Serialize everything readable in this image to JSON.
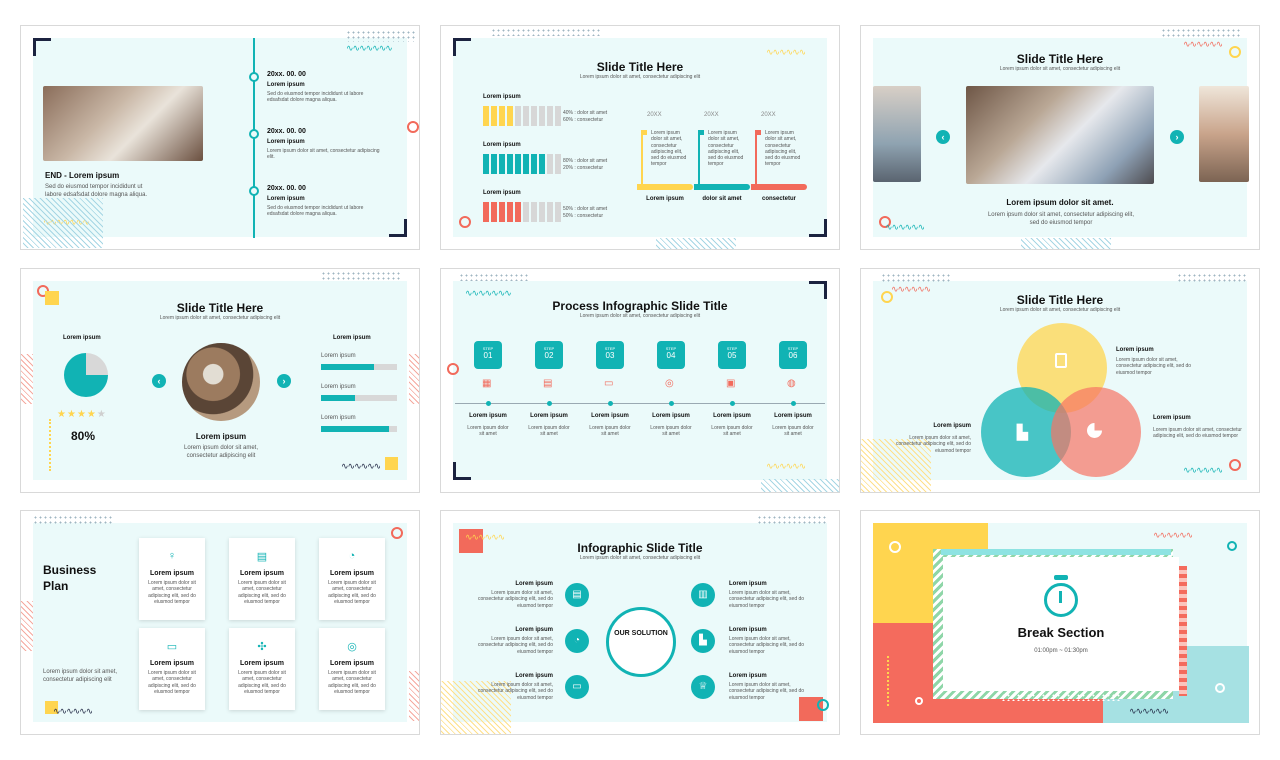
{
  "slide1": {
    "heading": "END - Lorem ipsum",
    "body": "Sed do eiusmod tempor incididunt ut labore edsafsdat dolore magna aliqua.",
    "timeline": [
      {
        "date": "20xx. 00. 00",
        "label": "Lorem ipsum",
        "text": "Sed do eiusmod tempor incididunt ut labore edsafsdat dolore magna aliqua."
      },
      {
        "date": "20xx. 00. 00",
        "label": "Lorem ipsum",
        "text": "Lorem ipsum dolor sit amet, consectetur adipiscing elit."
      },
      {
        "date": "20xx. 00. 00",
        "label": "Lorem ipsum",
        "text": "Sed do eiusmod tempor incididunt ut labore edsafsdat dolore magna aliqua."
      }
    ]
  },
  "slide2": {
    "title": "Slide Title Here",
    "subtitle": "Lorem ipsum dolor sit amet, consectetur adipiscing elit",
    "rows": [
      {
        "label": "Lorem ipsum",
        "line1": "40% : dolor sit amet",
        "line2": "60% : consectetur",
        "filled": 4,
        "color": "#ffd54f"
      },
      {
        "label": "Lorem ipsum",
        "line1": "80% : dolor sit amet",
        "line2": "20% : consectetur",
        "filled": 8,
        "color": "#11b3b4"
      },
      {
        "label": "Lorem ipsum",
        "line1": "50% : dolor sit amet",
        "line2": "50% : consectetur",
        "filled": 5,
        "color": "#f26a5b"
      }
    ],
    "years": [
      "20XX",
      "20XX",
      "20XX"
    ],
    "flag_text": "Lorem ipsum dolor sit amet, consectetur adipiscing elit, sed do eiusmod tempor",
    "flag_labels": [
      "Lorem ipsum",
      "dolor sit amet",
      "consectetur"
    ]
  },
  "slide3": {
    "title": "Slide Title Here",
    "subtitle": "Lorem ipsum dolor sit amet, consectetur adipiscing elit",
    "heading": "Lorem ipsum dolor sit amet.",
    "body": "Lorem ipsum dolor sit amet, consectetur adipiscing elit, sed do eiusmod tempor",
    "prev": "‹",
    "next": "›"
  },
  "slide4": {
    "title": "Slide Title Here",
    "subtitle": "Lorem ipsum dolor sit amet, consectetur adipiscing elit",
    "left_label": "Lorem ipsum",
    "rating_stars": 4,
    "rating_max": 5,
    "percent": "80%",
    "center_heading": "Lorem ipsum",
    "center_body": "Lorem ipsum dolor sit amet, consectetur adipiscing elit",
    "right_label": "Lorem ipsum",
    "progress": [
      {
        "label": "Lorem ipsum",
        "value": 0.7
      },
      {
        "label": "Lorem ipsum",
        "value": 0.45
      },
      {
        "label": "Lorem ipsum",
        "value": 0.9
      }
    ],
    "prev": "‹",
    "next": "›"
  },
  "slide5": {
    "title": "Process Infographic Slide Title",
    "subtitle": "Lorem ipsum dolor sit amet, consectetur adipiscing elit",
    "steps": [
      {
        "step": "STEP",
        "num": "01",
        "label": "Lorem ipsum",
        "text": "Lorem ipsum dolor sit amet"
      },
      {
        "step": "STEP",
        "num": "02",
        "label": "Lorem ipsum",
        "text": "Lorem ipsum dolor sit amet"
      },
      {
        "step": "STEP",
        "num": "03",
        "label": "Lorem ipsum",
        "text": "Lorem ipsum dolor sit amet"
      },
      {
        "step": "STEP",
        "num": "04",
        "label": "Lorem ipsum",
        "text": "Lorem ipsum dolor sit amet"
      },
      {
        "step": "STEP",
        "num": "05",
        "label": "Lorem ipsum",
        "text": "Lorem ipsum dolor sit amet"
      },
      {
        "step": "STEP",
        "num": "06",
        "label": "Lorem ipsum",
        "text": "Lorem ipsum dolor sit amet"
      }
    ]
  },
  "slide6": {
    "title": "Slide Title Here",
    "subtitle": "Lorem ipsum dolor sit amet, consectetur adipiscing elit",
    "top_label": "Lorem ipsum",
    "top_text": "Lorem ipsum dolor sit amet, consectetur adipiscing elit, sed do eiusmod tempor",
    "left_label": "Lorem ipsum",
    "left_text": "Lorem ipsum dolor sit amet, consectetur adipiscing elit, sed do eiusmod tempor",
    "right_label": "Lorem ipsum",
    "right_text": "Lorem ipsum dolor sit amet, consectetur adipiscing elit, sed do eiusmod tempor"
  },
  "slide7": {
    "title": "Business Plan",
    "body": "Lorem ipsum dolor sit amet, consectetur adipiscing elit",
    "cards": [
      {
        "icon": "lightbulb-icon",
        "label": "Lorem ipsum",
        "text": "Lorem ipsum dolor sit amet, consectetur adipiscing elit, sed do eiusmod tempor"
      },
      {
        "icon": "clipboard-icon",
        "label": "Lorem ipsum",
        "text": "Lorem ipsum dolor sit amet, consectetur adipiscing elit, sed do eiusmod tempor"
      },
      {
        "icon": "pie-chart-icon",
        "label": "Lorem ipsum",
        "text": "Lorem ipsum dolor sit amet, consectetur adipiscing elit, sed do eiusmod tempor"
      },
      {
        "icon": "chat-icon",
        "label": "Lorem ipsum",
        "text": "Lorem ipsum dolor sit amet, consectetur adipiscing elit, sed do eiusmod tempor"
      },
      {
        "icon": "network-icon",
        "label": "Lorem ipsum",
        "text": "Lorem ipsum dolor sit amet, consectetur adipiscing elit, sed do eiusmod tempor"
      },
      {
        "icon": "target-icon",
        "label": "Lorem ipsum",
        "text": "Lorem ipsum dolor sit amet, consectetur adipiscing elit, sed do eiusmod tempor"
      }
    ]
  },
  "slide8": {
    "title": "Infographic Slide Title",
    "subtitle": "Lorem ipsum dolor sit amet, consectetur adipiscing elit",
    "center": "OUR SOLUTION",
    "items_left": [
      {
        "label": "Lorem ipsum",
        "text": "Lorem ipsum dolor sit amet, consectetur adipiscing elit, sed do eiusmod tempor"
      },
      {
        "label": "Lorem ipsum",
        "text": "Lorem ipsum dolor sit amet, consectetur adipiscing elit, sed do eiusmod tempor"
      },
      {
        "label": "Lorem ipsum",
        "text": "Lorem ipsum dolor sit amet, consectetur adipiscing elit, sed do eiusmod tempor"
      }
    ],
    "items_right": [
      {
        "label": "Lorem ipsum",
        "text": "Lorem ipsum dolor sit amet, consectetur adipiscing elit, sed do eiusmod tempor"
      },
      {
        "label": "Lorem ipsum",
        "text": "Lorem ipsum dolor sit amet, consectetur adipiscing elit, sed do eiusmod tempor"
      },
      {
        "label": "Lorem ipsum",
        "text": "Lorem ipsum dolor sit amet, consectetur adipiscing elit, sed do eiusmod tempor"
      }
    ]
  },
  "slide9": {
    "title": "Break Section",
    "time": "01:00pm ~ 01:30pm"
  },
  "colors": {
    "teal": "#11b3b4",
    "coral": "#f26a5b",
    "yellow": "#ffd54f",
    "navy": "#1c2340",
    "mint": "#ebfafa"
  }
}
